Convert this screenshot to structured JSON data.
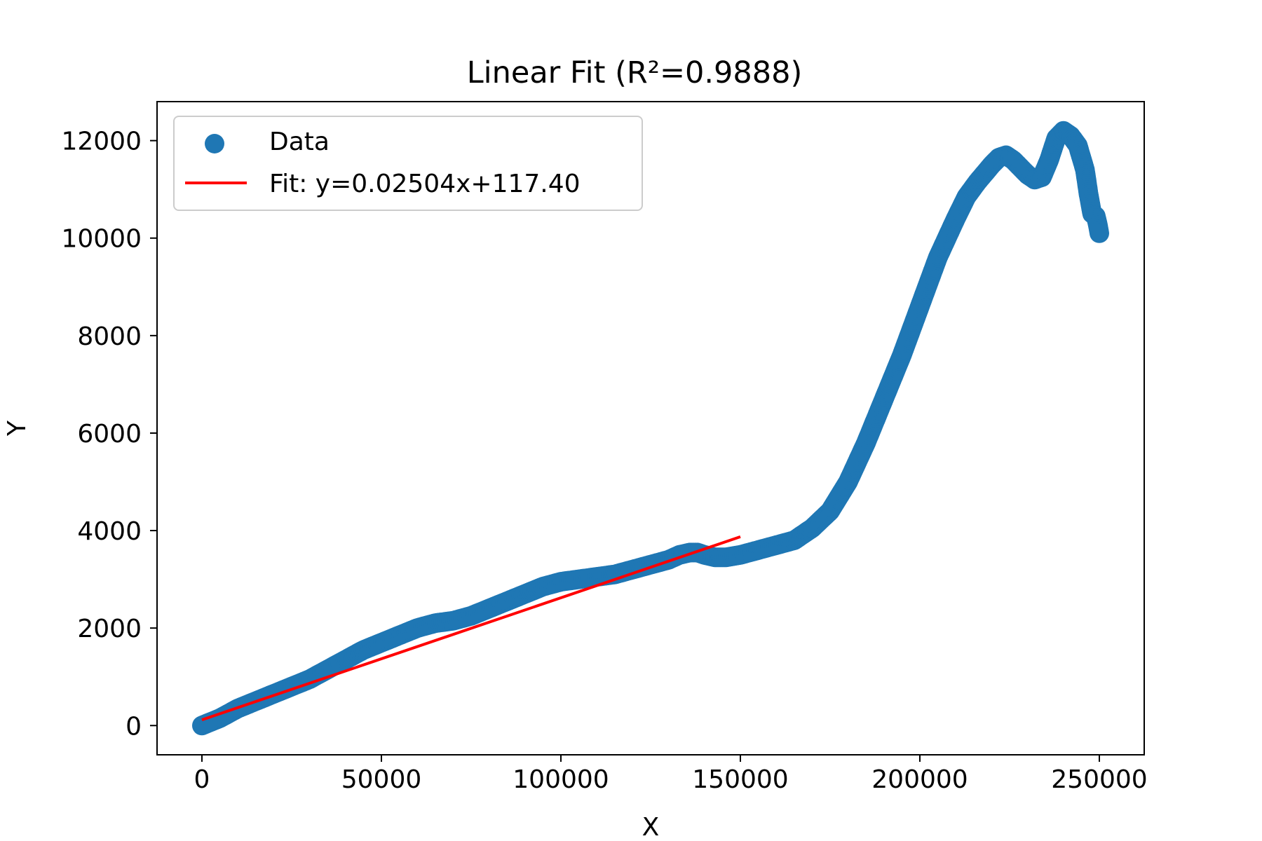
{
  "chart_data": {
    "type": "scatter",
    "title": "Linear Fit (R²=0.9888)",
    "xlabel": "X",
    "ylabel": "Y",
    "xlim": [
      -12500,
      262500
    ],
    "ylim": [
      -600,
      12800
    ],
    "xticks": [
      0,
      50000,
      100000,
      150000,
      200000,
      250000
    ],
    "yticks": [
      0,
      2000,
      4000,
      6000,
      8000,
      10000,
      12000
    ],
    "xtick_labels": [
      "0",
      "50000",
      "100000",
      "150000",
      "200000",
      "250000"
    ],
    "ytick_labels": [
      "0",
      "2000",
      "4000",
      "6000",
      "8000",
      "10000",
      "12000"
    ],
    "grid": false,
    "legend_position": "top-left",
    "series": [
      {
        "name": "Data",
        "kind": "scatter",
        "color": "#1f77b4",
        "x": [
          0,
          5000,
          10000,
          15000,
          20000,
          25000,
          30000,
          35000,
          40000,
          45000,
          50000,
          55000,
          60000,
          65000,
          70000,
          75000,
          80000,
          85000,
          90000,
          95000,
          100000,
          105000,
          110000,
          115000,
          120000,
          125000,
          130000,
          133000,
          136000,
          138000,
          140000,
          143000,
          146000,
          150000,
          155000,
          160000,
          165000,
          170000,
          175000,
          180000,
          185000,
          190000,
          195000,
          200000,
          205000,
          210000,
          213000,
          216000,
          220000,
          222000,
          224000,
          226000,
          228000,
          230000,
          232000,
          234000,
          236000,
          238000,
          240000,
          242000,
          244000,
          246000,
          247000,
          248000,
          249000,
          249500,
          250000
        ],
        "y": [
          0,
          150,
          350,
          500,
          650,
          800,
          950,
          1150,
          1350,
          1550,
          1700,
          1850,
          2000,
          2100,
          2150,
          2250,
          2400,
          2550,
          2700,
          2850,
          2950,
          3000,
          3050,
          3100,
          3200,
          3300,
          3400,
          3500,
          3550,
          3550,
          3500,
          3450,
          3450,
          3500,
          3600,
          3700,
          3800,
          4050,
          4400,
          5000,
          5800,
          6700,
          7600,
          8600,
          9600,
          10400,
          10850,
          11150,
          11500,
          11650,
          11700,
          11600,
          11450,
          11300,
          11200,
          11250,
          11600,
          12050,
          12200,
          12100,
          11900,
          11400,
          10900,
          10500,
          10450,
          10300,
          10100
        ]
      },
      {
        "name": "Fit: y=0.02504x+117.40",
        "kind": "line",
        "color": "#ff0000",
        "x": [
          0,
          150000
        ],
        "y": [
          117.4,
          3873.4
        ]
      }
    ]
  }
}
